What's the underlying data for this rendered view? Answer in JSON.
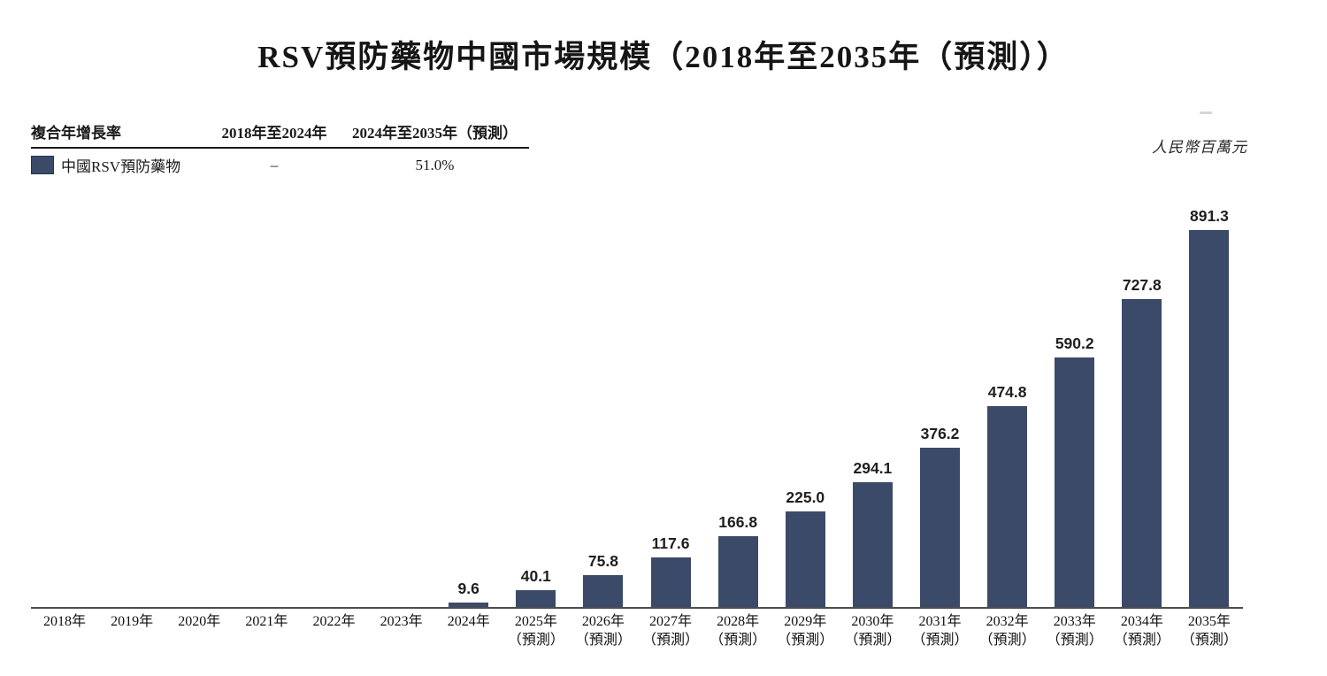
{
  "title": "RSV預防藥物中國市場規模（2018年至2035年（預測））",
  "unit_label": "人民幣百萬元",
  "cagr_table": {
    "headers": [
      "複合年增長率",
      "2018年至2024年",
      "2024年至2035年（預測）"
    ],
    "rows": [
      {
        "swatch_color": "#3b4a68",
        "label": "中國RSV預防藥物",
        "cagr_2018_2024": "–",
        "cagr_2024_2035": "51.0%"
      }
    ]
  },
  "chart_data": {
    "type": "bar",
    "series_name": "中國RSV預防藥物",
    "unit": "人民幣百萬元",
    "categories": [
      "2018年",
      "2019年",
      "2020年",
      "2021年",
      "2022年",
      "2023年",
      "2024年",
      "2025年",
      "2026年",
      "2027年",
      "2028年",
      "2029年",
      "2030年",
      "2031年",
      "2032年",
      "2033年",
      "2034年",
      "2035年"
    ],
    "forecast_suffix": "（預測）",
    "forecast_flags": [
      false,
      false,
      false,
      false,
      false,
      false,
      false,
      true,
      true,
      true,
      true,
      true,
      true,
      true,
      true,
      true,
      true,
      true
    ],
    "values": [
      null,
      null,
      null,
      null,
      null,
      null,
      9.6,
      40.1,
      75.8,
      117.6,
      166.8,
      225.0,
      294.1,
      376.2,
      474.8,
      590.2,
      727.8,
      891.3
    ],
    "value_labels": [
      "",
      "",
      "",
      "",
      "",
      "",
      "9.6",
      "40.1",
      "75.8",
      "117.6",
      "166.8",
      "225.0",
      "294.1",
      "376.2",
      "474.8",
      "590.2",
      "727.8",
      "891.3"
    ],
    "bar_color": "#3b4a68",
    "ylim": [
      0,
      891.3
    ],
    "grid": false,
    "legend_position": "top-left-table"
  }
}
